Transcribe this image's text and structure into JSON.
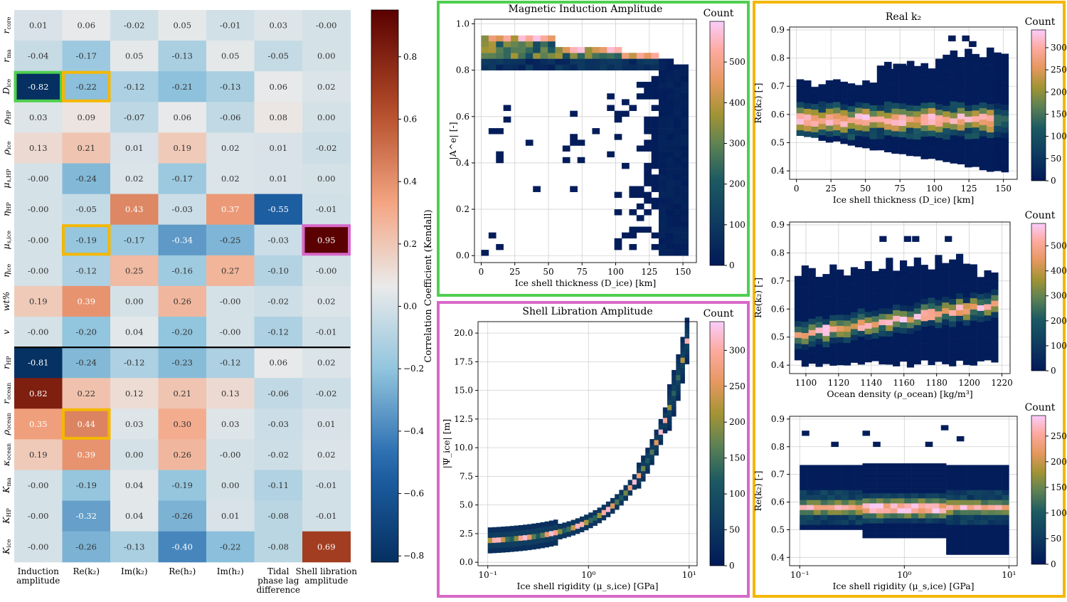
{
  "chart_data": [
    {
      "type": "heatmap",
      "id": "correlation-heatmap",
      "title": "",
      "colorbar_label": "Correlation Coefficient (Kendall)",
      "colorbar_range": [
        -0.82,
        0.95
      ],
      "colorbar_ticks": [
        "0.8",
        "0.6",
        "0.4",
        "0.2",
        "0.0",
        "−0.2",
        "−0.4",
        "−0.6",
        "−0.8"
      ],
      "colorbar_tick_values": [
        0.8,
        0.6,
        0.4,
        0.2,
        0.0,
        -0.2,
        -0.4,
        -0.6,
        -0.8
      ],
      "rows": [
        "r_core",
        "r_ma",
        "D_ice",
        "rho_HP",
        "rho_ice",
        "mu_s,HP",
        "eta_HP",
        "mu_s,ice",
        "eta_ice",
        "wt%",
        "v",
        "r_HP",
        "r_ocean",
        "rho_ocean",
        "kappa_ocean",
        "K_ma",
        "K_HP",
        "K_ice"
      ],
      "columns": [
        {
          "line1": "Induction",
          "line2": "amplitude",
          "line3": ""
        },
        {
          "line1": "Re(k₂)",
          "line2": "",
          "line3": ""
        },
        {
          "line1": "Im(k₂)",
          "line2": "",
          "line3": ""
        },
        {
          "line1": "Re(h₂)",
          "line2": "",
          "line3": ""
        },
        {
          "line1": "Im(h₂)",
          "line2": "",
          "line3": ""
        },
        {
          "line1": "Tidal",
          "line2": "phase lag",
          "line3": "difference"
        },
        {
          "line1": "Shell libration",
          "line2": "amplitude",
          "line3": ""
        }
      ],
      "values": [
        [
          "0.01",
          "0.06",
          "-0.02",
          "0.05",
          "-0.01",
          "0.03",
          "-0.00"
        ],
        [
          "-0.04",
          "-0.17",
          "0.05",
          "-0.13",
          "0.05",
          "-0.05",
          "0.00"
        ],
        [
          "-0.82",
          "-0.22",
          "-0.12",
          "-0.21",
          "-0.13",
          "0.06",
          "0.02"
        ],
        [
          "0.03",
          "0.09",
          "-0.07",
          "0.06",
          "-0.06",
          "0.08",
          "0.00"
        ],
        [
          "0.13",
          "0.21",
          "0.01",
          "0.19",
          "0.02",
          "0.01",
          "-0.02"
        ],
        [
          "-0.00",
          "-0.24",
          "0.02",
          "-0.17",
          "0.02",
          "0.01",
          "0.00"
        ],
        [
          "-0.00",
          "-0.05",
          "0.43",
          "-0.03",
          "0.37",
          "-0.55",
          "-0.01"
        ],
        [
          "-0.00",
          "-0.19",
          "-0.17",
          "-0.34",
          "-0.25",
          "-0.03",
          "0.95"
        ],
        [
          "-0.00",
          "-0.12",
          "0.25",
          "-0.16",
          "0.27",
          "-0.10",
          "-0.00"
        ],
        [
          "0.19",
          "0.39",
          "0.00",
          "0.26",
          "-0.00",
          "-0.02",
          "0.02"
        ],
        [
          "-0.00",
          "-0.20",
          "0.04",
          "-0.20",
          "-0.00",
          "-0.12",
          "-0.01"
        ],
        [
          "-0.81",
          "-0.24",
          "-0.12",
          "-0.23",
          "-0.12",
          "0.06",
          "0.02"
        ],
        [
          "0.82",
          "0.22",
          "0.12",
          "0.21",
          "0.13",
          "-0.06",
          "-0.02"
        ],
        [
          "0.35",
          "0.44",
          "0.03",
          "0.30",
          "0.03",
          "-0.03",
          "0.01"
        ],
        [
          "0.19",
          "0.39",
          "0.00",
          "0.26",
          "-0.00",
          "-0.02",
          "0.02"
        ],
        [
          "-0.00",
          "-0.19",
          "0.04",
          "-0.19",
          "0.00",
          "-0.11",
          "-0.01"
        ],
        [
          "-0.00",
          "-0.32",
          "0.04",
          "-0.26",
          "0.01",
          "-0.08",
          "-0.01"
        ],
        [
          "-0.00",
          "-0.26",
          "-0.13",
          "-0.40",
          "-0.22",
          "-0.08",
          "0.69"
        ]
      ],
      "highlights": [
        {
          "row": 2,
          "col": 0,
          "color": "#4fcf50"
        },
        {
          "row": 2,
          "col": 1,
          "color": "#f5b700"
        },
        {
          "row": 7,
          "col": 1,
          "color": "#f5b700"
        },
        {
          "row": 13,
          "col": 1,
          "color": "#f5b700"
        },
        {
          "row": 7,
          "col": 6,
          "color": "#d868c8"
        }
      ],
      "separator_after_row": 10
    },
    {
      "type": "heatmap",
      "id": "magnetic-induction",
      "title": "Magnetic Induction Amplitude",
      "xlabel": "Ice shell thickness (D_ice) [km]",
      "ylabel": "|A^e| [-]",
      "xlim": [
        -5,
        160
      ],
      "ylim": [
        -0.03,
        1.02
      ],
      "xticks": [
        0,
        25,
        50,
        75,
        100,
        125,
        150
      ],
      "yticks": [
        0.0,
        0.2,
        0.4,
        0.6,
        0.8,
        1.0
      ],
      "colorbar_label": "Count",
      "colorbar_max": 600,
      "colorbar_ticks": [
        0,
        100,
        200,
        300,
        400,
        500
      ],
      "panel_border": "#4fcf50"
    },
    {
      "type": "heatmap",
      "id": "shell-libration",
      "title": "Shell Libration Amplitude",
      "xlabel": "Ice shell rigidity (μ_s,ice) [GPa]",
      "ylabel": "|Ψ_ice| [m]",
      "xscale": "log",
      "xlim": [
        0.08,
        12
      ],
      "ylim": [
        -0.3,
        21
      ],
      "xticks": [
        "10⁻¹",
        "10⁰",
        "10¹"
      ],
      "yticks": [
        0.0,
        2.5,
        5.0,
        7.5,
        10.0,
        12.5,
        15.0,
        17.5,
        20.0
      ],
      "colorbar_label": "Count",
      "colorbar_max": 340,
      "colorbar_ticks": [
        0,
        50,
        100,
        150,
        200,
        250,
        300
      ],
      "panel_border": "#d868c8"
    },
    {
      "type": "heatmap",
      "id": "real-k2-thickness",
      "title": "Real k₂",
      "xlabel": "Ice shell thickness (D_ice) [km]",
      "ylabel": "Re(k₂) [-]",
      "xlim": [
        -5,
        160
      ],
      "ylim": [
        0.37,
        0.91
      ],
      "xticks": [
        0,
        25,
        50,
        75,
        100,
        125,
        150
      ],
      "yticks": [
        0.4,
        0.5,
        0.6,
        0.7,
        0.8,
        0.9
      ],
      "colorbar_label": "Count",
      "colorbar_max": 340,
      "colorbar_ticks": [
        0,
        50,
        100,
        150,
        200,
        250,
        300
      ],
      "panel_border": "#f5b700"
    },
    {
      "type": "heatmap",
      "id": "real-k2-density",
      "title": "",
      "xlabel": "Ocean density (ρ_ocean) [kg/m³]",
      "ylabel": "Re(k₂) [-]",
      "xlim": [
        1090,
        1225
      ],
      "ylim": [
        0.37,
        0.91
      ],
      "xticks": [
        1100,
        1120,
        1140,
        1160,
        1180,
        1200,
        1220
      ],
      "yticks": [
        0.4,
        0.5,
        0.6,
        0.7,
        0.8,
        0.9
      ],
      "colorbar_label": "Count",
      "colorbar_max": 590,
      "colorbar_ticks": [
        0,
        100,
        200,
        300,
        400,
        500
      ],
      "panel_border": "#f5b700"
    },
    {
      "type": "heatmap",
      "id": "real-k2-rigidity",
      "title": "",
      "xlabel": "Ice shell rigidity (μ_s,ice) [GPa]",
      "ylabel": "Re(k₂) [-]",
      "xscale": "log",
      "xlim": [
        0.08,
        12
      ],
      "ylim": [
        0.37,
        0.91
      ],
      "xticks": [
        "10⁻¹",
        "10⁰",
        "10¹"
      ],
      "yticks": [
        0.4,
        0.5,
        0.6,
        0.7,
        0.8,
        0.9
      ],
      "colorbar_label": "Count",
      "colorbar_max": 290,
      "colorbar_ticks": [
        0,
        50,
        100,
        150,
        200,
        250
      ],
      "panel_border": "#f5b700"
    }
  ]
}
